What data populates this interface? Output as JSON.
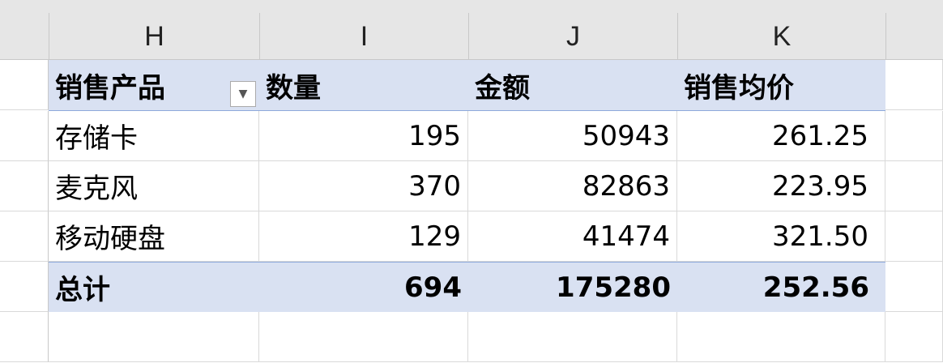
{
  "columns": [
    "H",
    "I",
    "J",
    "K"
  ],
  "pivot": {
    "headers": [
      "销售产品",
      "数量",
      "金额",
      "销售均价"
    ],
    "rows": [
      [
        "存储卡",
        "195",
        "50943",
        "261.25"
      ],
      [
        "麦克风",
        "370",
        "82863",
        "223.95"
      ],
      [
        "移动硬盘",
        "129",
        "41474",
        "321.50"
      ]
    ],
    "total": [
      "总计",
      "694",
      "175280",
      "252.56"
    ]
  },
  "colors": {
    "pivot_header_bg": "#d9e1f2",
    "pivot_border": "#8ea9db"
  }
}
